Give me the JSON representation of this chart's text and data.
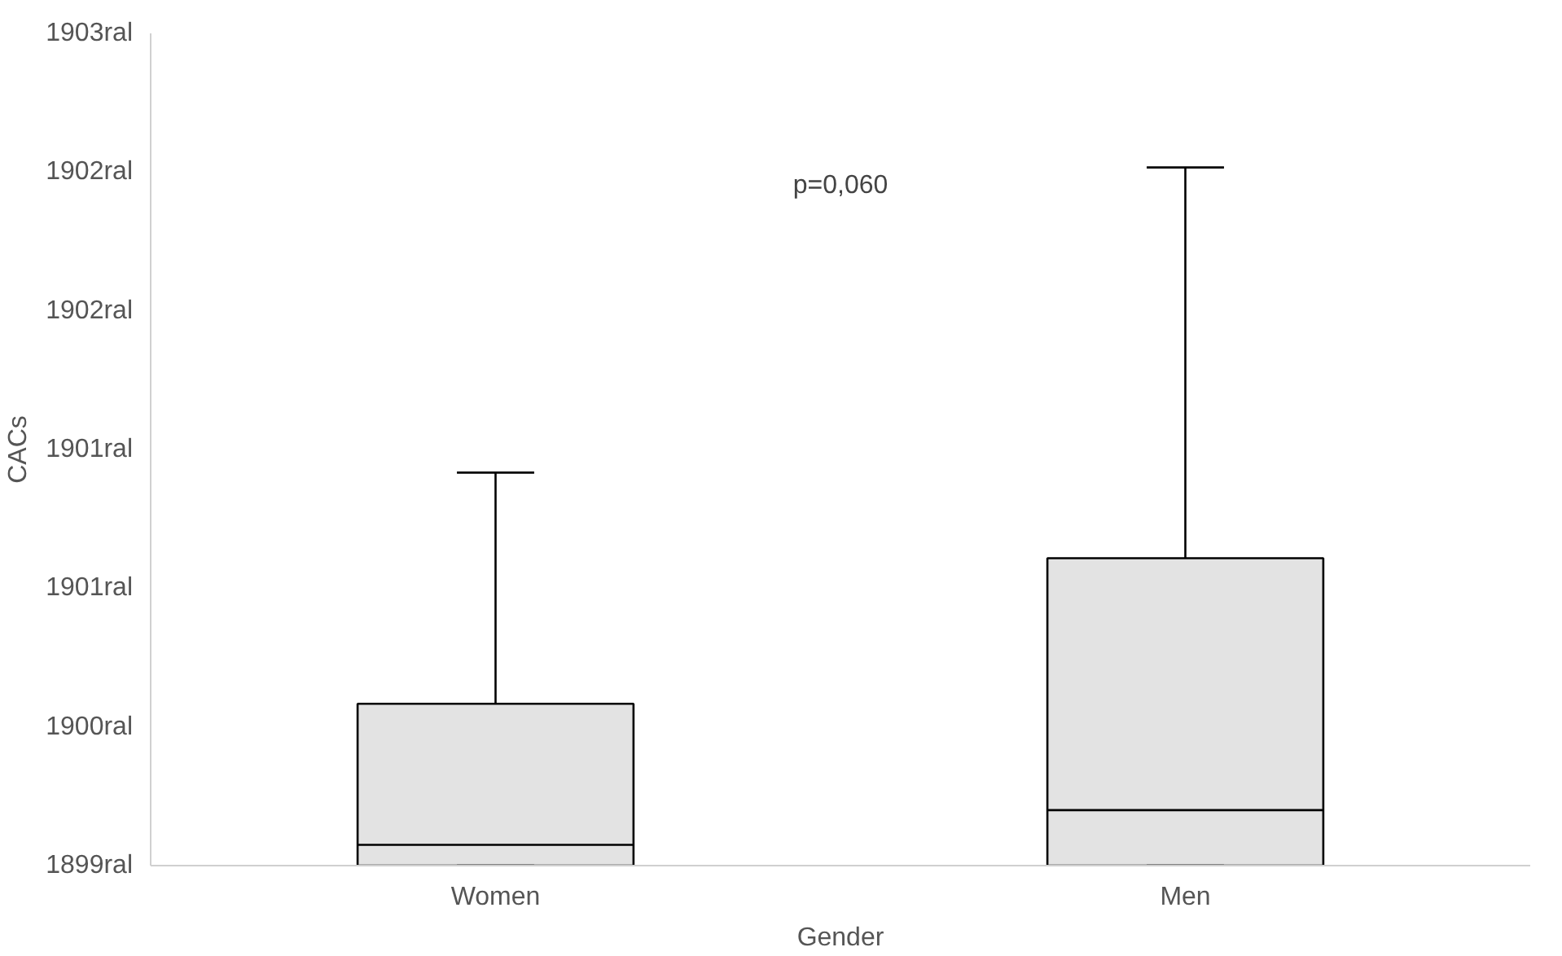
{
  "chart_data": {
    "type": "box",
    "xlabel": "Gender",
    "ylabel": "CACs",
    "categories": [
      "Women",
      "Men"
    ],
    "boxes": [
      {
        "low": 1899.4,
        "q1": 1899.4,
        "median": 1899.49,
        "q3": 1900.1,
        "high": 1901.1
      },
      {
        "low": 1899.4,
        "q1": 1899.4,
        "median": 1899.64,
        "q3": 1900.73,
        "high": 1902.42
      }
    ],
    "color": "#e3e3e3",
    "ylim": [
      1899.4,
      1903.0
    ],
    "yticks": [
      {
        "value": 1899.4,
        "label": "1899ral"
      },
      {
        "value": 1900.0,
        "label": "1900ral"
      },
      {
        "value": 1900.6,
        "label": "1901ral"
      },
      {
        "value": 1901.2,
        "label": "1901ral"
      },
      {
        "value": 1901.8,
        "label": "1902ral"
      },
      {
        "value": 1902.4,
        "label": "1902ral"
      },
      {
        "value": 1903.0,
        "label": "1903ral"
      }
    ],
    "annotations": [
      "p=0,060"
    ],
    "grid": false
  }
}
